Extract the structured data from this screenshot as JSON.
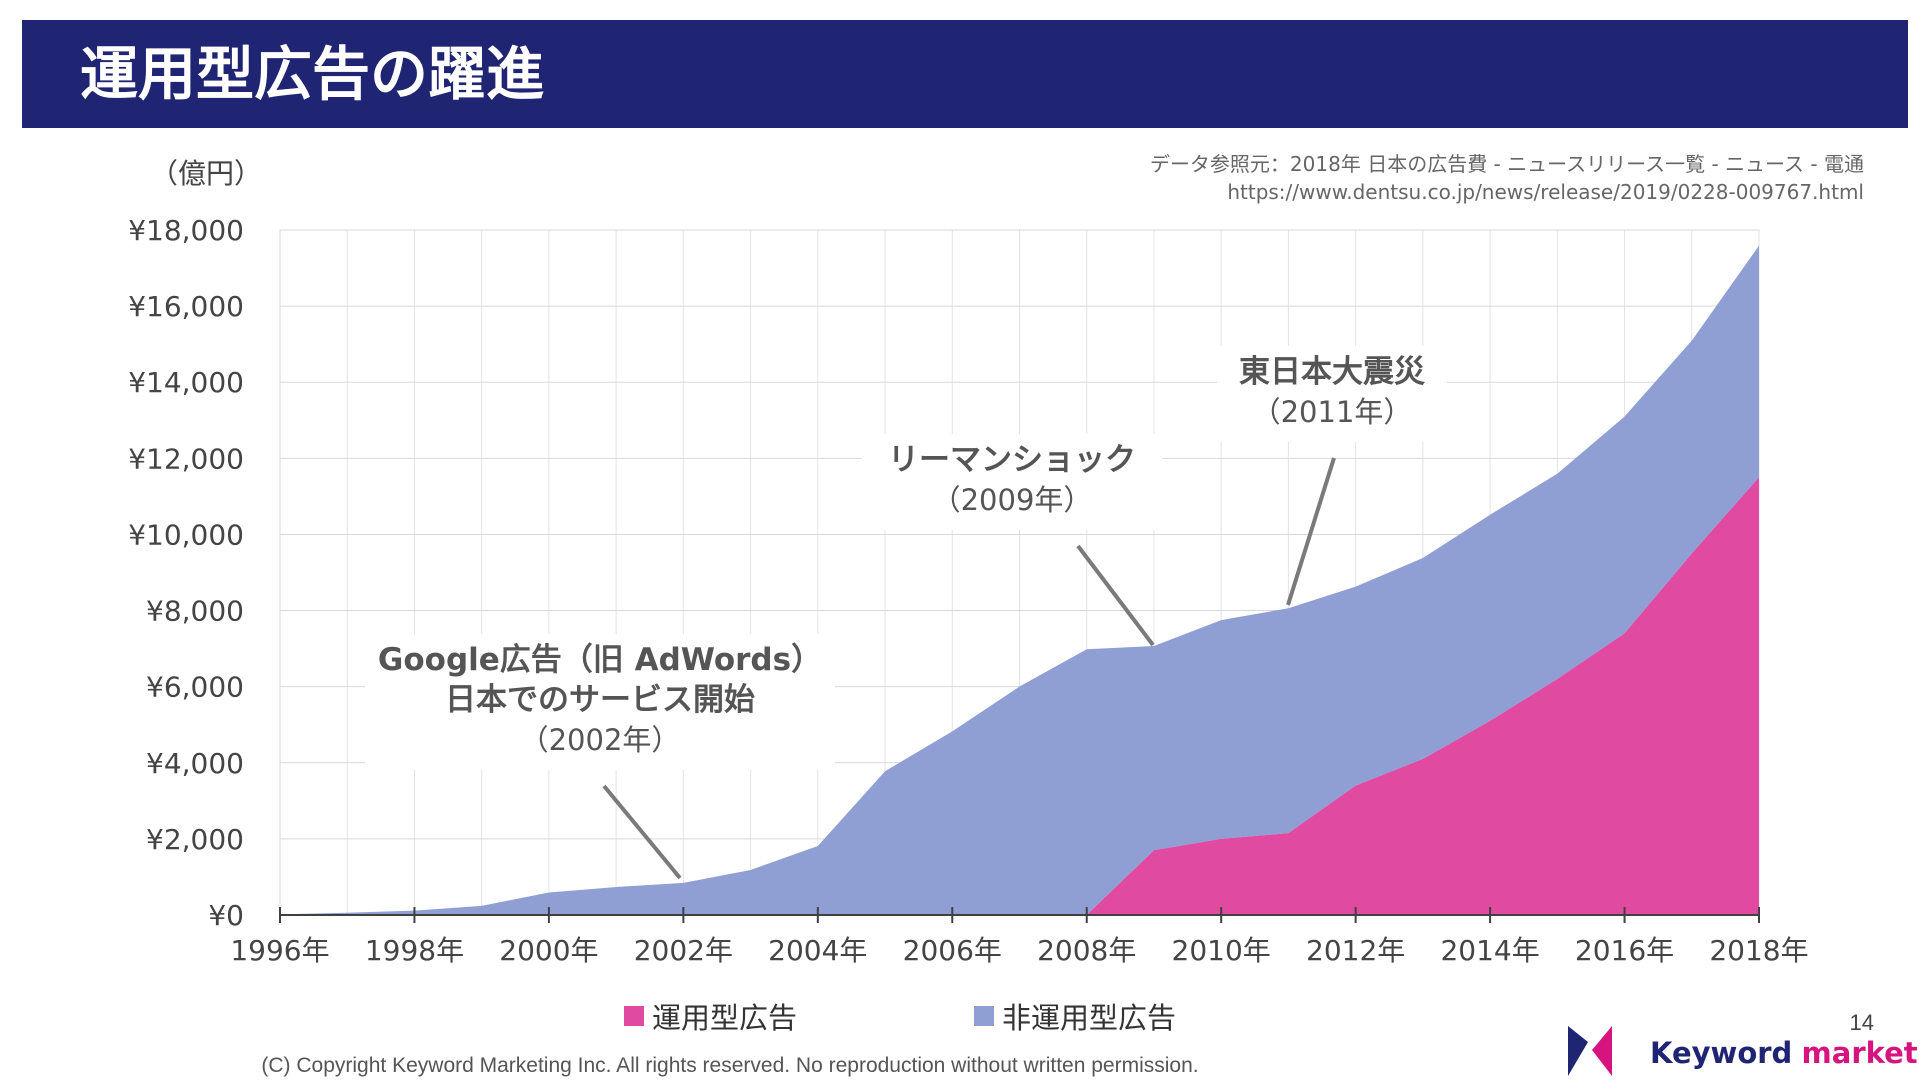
{
  "header": {
    "title": "運用型広告の躍進"
  },
  "y_unit": "（億円）",
  "source": {
    "line1": "データ参照元：2018年 日本の広告費 - ニュースリリース一覧 - ニュース - 電通",
    "line2": "https://www.dentsu.co.jp/news/release/2019/0228-009767.html"
  },
  "chart_data": {
    "type": "area",
    "stacked": true,
    "x": [
      1996,
      1997,
      1998,
      1999,
      2000,
      2001,
      2002,
      2003,
      2004,
      2005,
      2006,
      2007,
      2008,
      2009,
      2010,
      2011,
      2012,
      2013,
      2014,
      2015,
      2016,
      2017,
      2018
    ],
    "x_tick_labels": [
      "1996年",
      "1998年",
      "2000年",
      "2002年",
      "2004年",
      "2006年",
      "2008年",
      "2010年",
      "2012年",
      "2014年",
      "2016年",
      "2018年"
    ],
    "x_tick_values": [
      1996,
      1998,
      2000,
      2002,
      2004,
      2006,
      2008,
      2010,
      2012,
      2014,
      2016,
      2018
    ],
    "series": [
      {
        "name": "運用型広告",
        "color": "#e04aa0",
        "values": [
          0,
          0,
          0,
          0,
          0,
          0,
          0,
          0,
          0,
          0,
          0,
          0,
          0,
          1700,
          2000,
          2150,
          3400,
          4100,
          5100,
          6200,
          7400,
          9500,
          11500
        ]
      },
      {
        "name": "非運用型広告",
        "color": "#8f9fd4",
        "values": [
          16,
          60,
          114,
          241,
          590,
          735,
          845,
          1183,
          1814,
          3777,
          4826,
          6003,
          6983,
          5369,
          5747,
          5911,
          5229,
          5281,
          5419,
          5394,
          5700,
          5594,
          6089
        ]
      }
    ],
    "y_tick_labels": [
      "¥0",
      "¥2,000",
      "¥4,000",
      "¥6,000",
      "¥8,000",
      "¥10,000",
      "¥12,000",
      "¥14,000",
      "¥16,000",
      "¥18,000"
    ],
    "ylim": [
      0,
      18000
    ],
    "xlim": [
      1996,
      2018
    ],
    "grid": true,
    "legend_position": "bottom",
    "annotations": [
      {
        "lines": [
          "Google広告（旧 AdWords）",
          "日本でのサービス開始",
          "（2002年）"
        ],
        "bold_lines": 2,
        "year": 2002,
        "value": 845
      },
      {
        "lines": [
          "リーマンショック",
          "（2009年）"
        ],
        "bold_lines": 1,
        "year": 2009,
        "value": 7069
      },
      {
        "lines": [
          "東日本大震災",
          "（2011年）"
        ],
        "bold_lines": 1,
        "year": 2011,
        "value": 8061
      }
    ]
  },
  "legend": {
    "item1": "運用型広告",
    "item2": "非運用型広告"
  },
  "footer": {
    "copyright": "(C) Copyright Keyword Marketing Inc. All rights reserved. No reproduction without written permission.",
    "page_number": "14",
    "logo_word1": "Keyword",
    "logo_word2": "marketing"
  }
}
